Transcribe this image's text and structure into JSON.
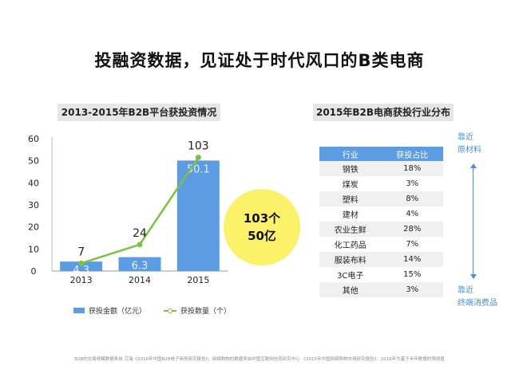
{
  "title": "投融资数据，见证处于时代风口的B类电商",
  "left_section": {
    "label": "2013-2015年B2B平台获投资情况"
  },
  "right_section": {
    "label": "2015年B2B电商获投行业分布"
  },
  "chart_data": {
    "type": "bar",
    "title": "2013-2015年B2B平台获投资情况",
    "categories": [
      "2013",
      "2014",
      "2015"
    ],
    "ylim": [
      0,
      60
    ],
    "yticks": [
      0,
      10,
      20,
      30,
      40,
      50,
      60
    ],
    "series": [
      {
        "name": "获投金额（亿元）",
        "type": "bar",
        "values": [
          4.3,
          6.3,
          50.1
        ],
        "labels": [
          "4.3",
          "6.3",
          "50.1"
        ],
        "color": "#5b9ce2"
      },
      {
        "name": "获投数量（个）",
        "type": "line",
        "values": [
          7,
          24,
          103
        ],
        "labels": [
          "7",
          "24",
          "103"
        ],
        "color": "#7bc142"
      }
    ],
    "legend_position": "bottom"
  },
  "highlight": {
    "line1": "103个",
    "line2": "50亿"
  },
  "legend": {
    "bar_label": "获投金额（亿元）",
    "line_label": "获投数量（个）"
  },
  "table": {
    "headers": [
      "行业",
      "获投占比"
    ],
    "rows": [
      [
        "钢铁",
        "18%"
      ],
      [
        "煤炭",
        "3%"
      ],
      [
        "塑料",
        "8%"
      ],
      [
        "建材",
        "4%"
      ],
      [
        "农业生鲜",
        "28%"
      ],
      [
        "化工药品",
        "7%"
      ],
      [
        "服装布料",
        "14%"
      ],
      [
        "3C电子",
        "15%"
      ],
      [
        "其他",
        "3%"
      ]
    ]
  },
  "side_top": {
    "line1": "靠近",
    "line2": "原材料"
  },
  "side_bottom": {
    "line1": "靠近",
    "line2": "终端消费品"
  },
  "footnote": "B2B的交易规模数据来自 艾瑞《2016年中国B2B电子商务研究报告》；网络购物的数据来自中国互联网信息研究中心 《2015年中国网络购物市场研究报告》：2016年为基于半年数据的预测值",
  "colors": {
    "bar": "#5b9ce2",
    "line": "#7bc142",
    "highlight": "#fbf26a",
    "accent": "#4a90d9"
  }
}
